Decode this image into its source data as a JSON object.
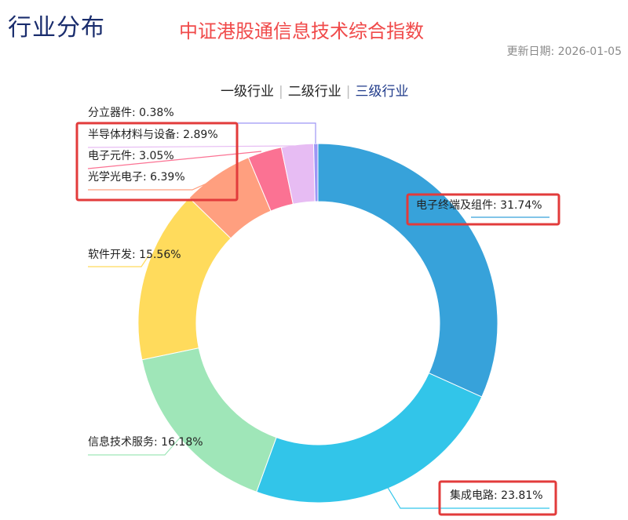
{
  "header": {
    "title": "行业分布",
    "chart_title": "中证港股通信息技术综合指数",
    "update_label": "更新日期:",
    "update_date": "2026-01-05"
  },
  "tabs": [
    {
      "label": "一级行业",
      "active": false
    },
    {
      "label": "二级行业",
      "active": false
    },
    {
      "label": "三级行业",
      "active": true
    }
  ],
  "chart_data": {
    "type": "pie",
    "variant": "donut",
    "title": "",
    "labels": [
      "电子终端及组件",
      "集成电路",
      "信息技术服务",
      "软件开发",
      "光学光电子",
      "电子元件",
      "半导体材料与设备",
      "分立器件"
    ],
    "values": [
      31.74,
      23.81,
      16.18,
      15.56,
      6.39,
      3.05,
      2.89,
      0.38
    ],
    "colors": [
      "#37a2da",
      "#32c5e9",
      "#9fe6b8",
      "#ffdb5c",
      "#ff9f7f",
      "#fb7293",
      "#e7bcf3",
      "#9d96f5"
    ],
    "highlighted": [
      "电子终端及组件",
      "集成电路",
      "半导体材料与设备",
      "电子元件",
      "光学光电子"
    ],
    "highlight_color": "#e23b3b"
  }
}
